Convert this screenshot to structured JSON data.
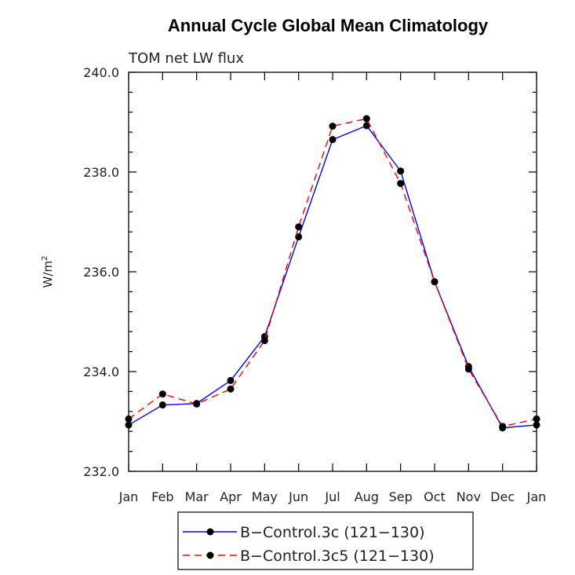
{
  "chart_data": {
    "type": "line",
    "title": "Annual Cycle Global Mean Climatology",
    "subtitle": "TOM net LW flux",
    "ylabel": "W/m",
    "ylabel_sup": "2",
    "xlabel": "",
    "categories": [
      "Jan",
      "Feb",
      "Mar",
      "Apr",
      "May",
      "Jun",
      "Jul",
      "Aug",
      "Sep",
      "Oct",
      "Nov",
      "Dec",
      "Jan"
    ],
    "ylim": [
      232.0,
      240.0
    ],
    "yticks": [
      "232.0",
      "234.0",
      "236.0",
      "238.0",
      "240.0"
    ],
    "series": [
      {
        "name": "B−Control.3c (121−130)",
        "color": "#0000ff",
        "dash": "solid",
        "values": [
          232.93,
          233.33,
          233.36,
          233.82,
          234.7,
          236.7,
          238.65,
          238.93,
          238.02,
          235.8,
          234.1,
          232.87,
          232.93
        ]
      },
      {
        "name": "B−Control.3c5 (121−130)",
        "color": "#ff0000",
        "dash": "dashed",
        "values": [
          233.05,
          233.55,
          233.35,
          233.65,
          234.62,
          236.9,
          238.92,
          239.07,
          237.77,
          235.8,
          234.05,
          232.9,
          233.05
        ]
      }
    ],
    "grid": false,
    "legend_position": "bottom"
  }
}
